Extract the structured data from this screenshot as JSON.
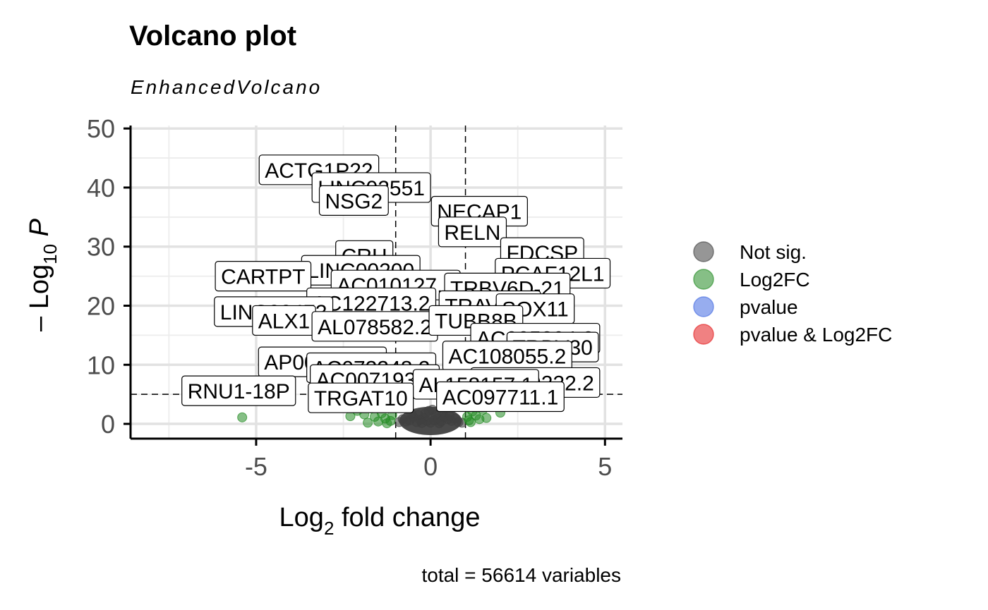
{
  "chart_data": {
    "type": "scatter",
    "title": "Volcano plot",
    "subtitle": "EnhancedVolcano",
    "xlabel": {
      "base": "Log",
      "sub": "2",
      "rest": " fold change"
    },
    "ylabel": {
      "pre": "– Log",
      "sub": "10",
      "post": " P"
    },
    "caption": "total = 56614 variables",
    "xlim": [
      -8.6,
      5.5
    ],
    "ylim": [
      -2.5,
      50.5
    ],
    "xticks": [
      -5,
      0,
      5
    ],
    "xtick_labels": [
      "-5",
      "0",
      "5"
    ],
    "yticks": [
      0,
      10,
      20,
      30,
      40,
      50
    ],
    "ytick_labels": [
      "0",
      "10",
      "20",
      "30",
      "40",
      "50"
    ],
    "grid": true,
    "cutoffs": {
      "fc": [
        -1,
        1
      ],
      "p_log10": 5
    },
    "legend_position": "right",
    "legend": [
      {
        "name": "Not sig.",
        "color": "#404040"
      },
      {
        "name": "Log2FC",
        "color": "#228b22"
      },
      {
        "name": "pvalue",
        "color": "#4169e1"
      },
      {
        "name": "pvalue & Log2FC",
        "color": "#e31a1c"
      }
    ],
    "series": [
      {
        "name": "Not sig.",
        "points": [
          [
            0,
            0.2
          ],
          [
            0.1,
            0.6
          ],
          [
            -0.1,
            0.5
          ],
          [
            0.2,
            0.9
          ],
          [
            -0.2,
            1.0
          ],
          [
            0.3,
            0.4
          ],
          [
            -0.3,
            0.7
          ],
          [
            0.4,
            1.1
          ],
          [
            -0.4,
            0.3
          ],
          [
            0.5,
            0.8
          ],
          [
            -0.5,
            1.2
          ],
          [
            0.6,
            0.5
          ],
          [
            -0.6,
            0.6
          ],
          [
            0.7,
            0.9
          ],
          [
            -0.7,
            0.4
          ],
          [
            0.8,
            0.3
          ],
          [
            -0.8,
            0.8
          ],
          [
            0.15,
            1.6
          ],
          [
            -0.15,
            1.8
          ],
          [
            0.35,
            2.0
          ],
          [
            -0.35,
            1.5
          ],
          [
            0.05,
            2.4
          ],
          [
            -0.05,
            2.2
          ],
          [
            0.9,
            0.2
          ],
          [
            -0.9,
            0.3
          ],
          [
            0.25,
            0.1
          ],
          [
            -0.25,
            0.15
          ],
          [
            0.55,
            1.4
          ],
          [
            -0.55,
            1.7
          ]
        ]
      },
      {
        "name": "Log2FC",
        "points": [
          [
            -5.4,
            1.1
          ],
          [
            1.6,
            1.0
          ],
          [
            -2.1,
            2.2
          ],
          [
            -1.9,
            1.6
          ],
          [
            -1.7,
            2.6
          ],
          [
            -1.6,
            1.2
          ],
          [
            -1.5,
            0.4
          ],
          [
            -1.4,
            1.8
          ],
          [
            -1.3,
            0.9
          ],
          [
            -1.2,
            2.9
          ],
          [
            -1.15,
            0.5
          ],
          [
            -1.1,
            1.5
          ],
          [
            1.05,
            1.2
          ],
          [
            1.1,
            0.6
          ],
          [
            1.2,
            2.1
          ],
          [
            1.3,
            1.4
          ],
          [
            1.4,
            0.8
          ],
          [
            1.5,
            2.4
          ],
          [
            -1.8,
            0.2
          ],
          [
            -1.25,
            0.1
          ],
          [
            1.15,
            0.3
          ],
          [
            1.35,
            2.8
          ],
          [
            -2.3,
            1.3
          ],
          [
            2.0,
            1.9
          ]
        ]
      }
    ],
    "annotations": [
      {
        "label": "ACTG1P22",
        "x": -3.2,
        "y": 43.0
      },
      {
        "label": "LINC02551",
        "x": -1.7,
        "y": 40.0
      },
      {
        "label": "NSG2",
        "x": -2.2,
        "y": 37.8
      },
      {
        "label": "NECAP1",
        "x": 1.4,
        "y": 36.0
      },
      {
        "label": "RELN",
        "x": 1.2,
        "y": 32.5
      },
      {
        "label": "FDCSP",
        "x": 3.2,
        "y": 29.0
      },
      {
        "label": "CRH",
        "x": -1.9,
        "y": 28.5
      },
      {
        "label": "PCAF12L1",
        "x": 3.5,
        "y": 25.5
      },
      {
        "label": "LINC00200",
        "x": -2.0,
        "y": 26.0
      },
      {
        "label": "CARTPT",
        "x": -4.8,
        "y": 25.0
      },
      {
        "label": "AC010127.1",
        "x": -1.0,
        "y": 23.5
      },
      {
        "label": "TRBV6D-21",
        "x": 2.2,
        "y": 23.0
      },
      {
        "label": "AC122713.2",
        "x": -1.7,
        "y": 20.5
      },
      {
        "label": "TRAV3L1",
        "x": 1.7,
        "y": 20.0
      },
      {
        "label": "SOX11",
        "x": 3.0,
        "y": 19.5
      },
      {
        "label": "LINC00473",
        "x": -4.5,
        "y": 19.0
      },
      {
        "label": "ALX1",
        "x": -4.2,
        "y": 17.5
      },
      {
        "label": "AL078582.2",
        "x": -1.6,
        "y": 16.5
      },
      {
        "label": "TUBB8B",
        "x": 1.3,
        "y": 17.5
      },
      {
        "label": "AC005394.2",
        "x": 3.0,
        "y": 14.5
      },
      {
        "label": "TRBV30",
        "x": 3.5,
        "y": 13.0
      },
      {
        "label": "AP000351.2",
        "x": -3.1,
        "y": 10.5
      },
      {
        "label": "AC108055.2",
        "x": 2.2,
        "y": 11.5
      },
      {
        "label": "AC073348.2",
        "x": -1.7,
        "y": 9.5
      },
      {
        "label": "AC007193.2",
        "x": -1.6,
        "y": 7.5
      },
      {
        "label": "AC019222.2",
        "x": 3.0,
        "y": 7.0
      },
      {
        "label": "AL158157.1",
        "x": 1.3,
        "y": 6.7
      },
      {
        "label": "RNU1-18P",
        "x": -5.5,
        "y": 5.6
      },
      {
        "label": "TRGAT10",
        "x": -2.0,
        "y": 4.4
      },
      {
        "label": "AC097711.1",
        "x": 2.0,
        "y": 4.6
      }
    ]
  }
}
